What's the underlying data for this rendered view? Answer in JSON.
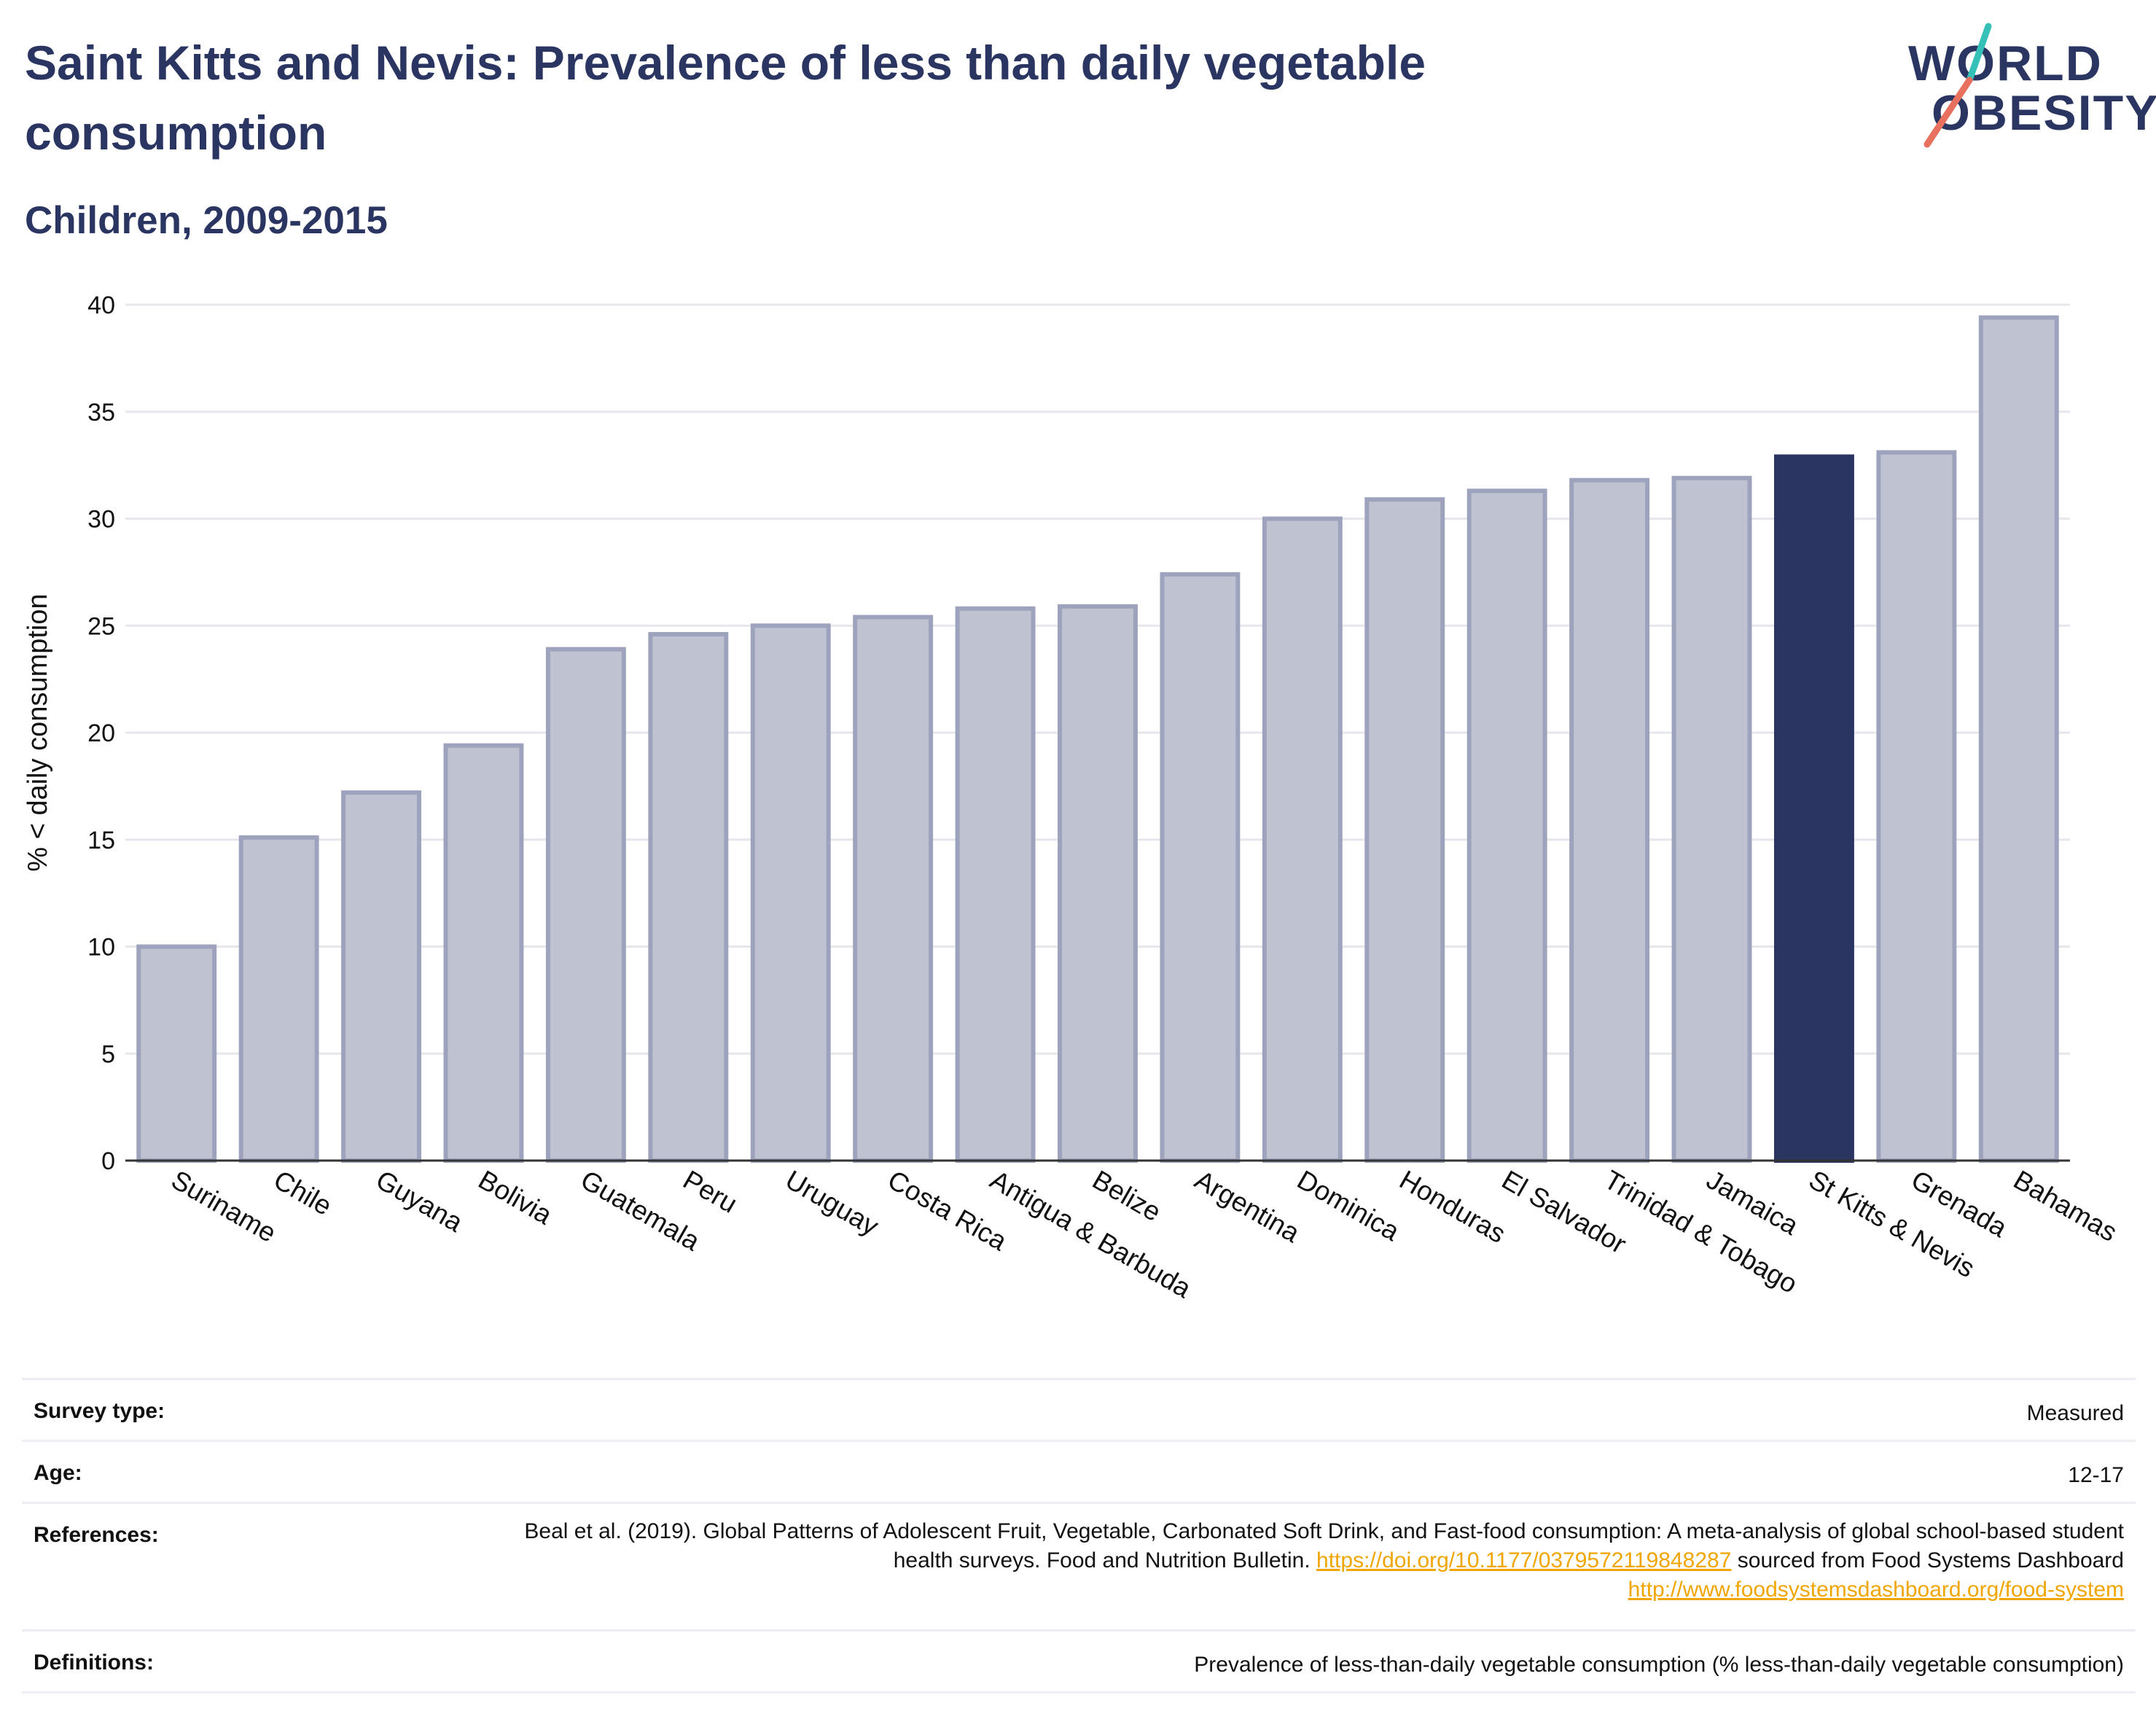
{
  "header": {
    "title": "Saint Kitts and Nevis: Prevalence of less than daily vegetable consumption",
    "subtitle": "Children, 2009-2015"
  },
  "logo": {
    "line1": "WORLD",
    "line2": "OBESITY"
  },
  "colors": {
    "brand_navy": "#2a3561",
    "bar_fill": "#bfc2d0",
    "bar_stroke": "#9ea3bd",
    "highlight": "#2a3561",
    "link": "#f0a500",
    "logo_teal": "#35c0b8",
    "logo_coral": "#e8705f"
  },
  "chart_data": {
    "type": "bar",
    "ylabel": "% < daily consumption",
    "ylim": [
      0,
      40
    ],
    "yticks": [
      0,
      5,
      10,
      15,
      20,
      25,
      30,
      35,
      40
    ],
    "grid": true,
    "highlight_category": "St Kitts & Nevis",
    "categories": [
      "Suriname",
      "Chile",
      "Guyana",
      "Bolivia",
      "Guatemala",
      "Peru",
      "Uruguay",
      "Costa Rica",
      "Antigua & Barbuda",
      "Belize",
      "Argentina",
      "Dominica",
      "Honduras",
      "El Salvador",
      "Trinidad & Tobago",
      "Jamaica",
      "St Kitts & Nevis",
      "Grenada",
      "Bahamas"
    ],
    "values": [
      10.0,
      15.1,
      17.2,
      19.4,
      23.9,
      24.6,
      25.0,
      25.4,
      25.8,
      25.9,
      27.4,
      30.0,
      30.9,
      31.3,
      31.8,
      31.9,
      32.9,
      33.1,
      39.4
    ]
  },
  "meta": {
    "survey_label": "Survey type:",
    "survey_value": "Measured",
    "age_label": "Age:",
    "age_value": "12-17",
    "references_label": "References:",
    "references_text_1": "Beal et al. (2019). Global Patterns of Adolescent Fruit, Vegetable, Carbonated Soft Drink, and Fast-food consumption: A meta-analysis of global school-based student health surveys. Food and Nutrition Bulletin. ",
    "references_link_1": "https://doi.org/10.1177/0379572119848287",
    "references_text_2": " sourced from Food Systems Dashboard ",
    "references_link_2": "http://www.foodsystemsdashboard.org/food-system",
    "definitions_label": "Definitions:",
    "definitions_value": "Prevalence of less-than-daily vegetable consumption (% less-than-daily vegetable consumption)"
  }
}
